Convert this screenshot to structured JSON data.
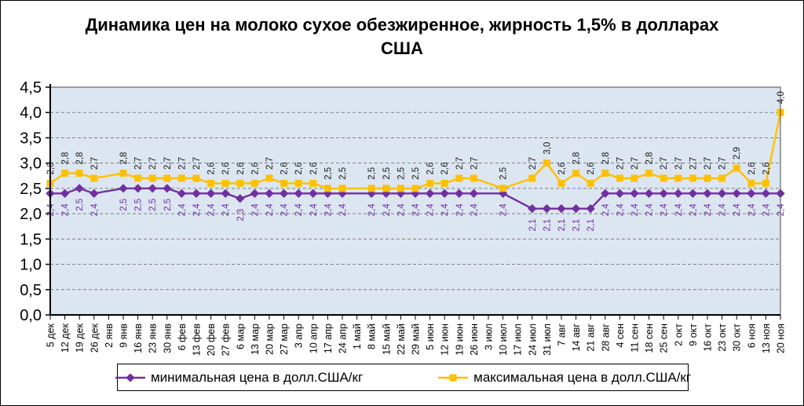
{
  "title": "Динамика цен на молоко сухое обезжиренное, жирность 1,5% в долларах США",
  "chart_data": {
    "type": "line",
    "title": "Динамика цен на молоко сухое обезжиренное, жирность 1,5% в долларах США",
    "categories": [
      "5 дек",
      "12 дек",
      "19 дек",
      "26 дек",
      "2 янв",
      "9 янв",
      "16 янв",
      "23 янв",
      "30 янв",
      "6 фев",
      "13 фев",
      "20 фев",
      "27 фев",
      "6 мар",
      "13 мар",
      "20 мар",
      "27 мар",
      "3 апр",
      "10 апр",
      "17 апр",
      "24 апр",
      "1 май",
      "8 май",
      "15 май",
      "22 май",
      "29 май",
      "5 июн",
      "12 июн",
      "19 июн",
      "26 июн",
      "3 июл",
      "10 июл",
      "17 июл",
      "24 июл",
      "31 июл",
      "7 авг",
      "14 авг",
      "21 авг",
      "28 авг",
      "4 сен",
      "11 сен",
      "18 сен",
      "25 сен",
      "2 окт",
      "9 окт",
      "16 окт",
      "23 окт",
      "30 окт",
      "6 ноя",
      "13 ноя",
      "20 ноя"
    ],
    "series": [
      {
        "name": "минимальная цена в долл.США/кг",
        "color": "#7030A0",
        "marker": "diamond",
        "label_color": "#7030A0",
        "label_position": "below",
        "values": [
          2.4,
          2.4,
          2.5,
          2.4,
          null,
          2.5,
          2.5,
          2.5,
          2.5,
          2.4,
          2.4,
          2.4,
          2.4,
          2.3,
          2.4,
          2.4,
          2.4,
          2.4,
          2.4,
          2.4,
          2.4,
          null,
          2.4,
          2.4,
          2.4,
          2.4,
          2.4,
          2.4,
          2.4,
          2.4,
          null,
          2.4,
          null,
          2.1,
          2.1,
          2.1,
          2.1,
          2.1,
          2.4,
          2.4,
          2.4,
          2.4,
          2.4,
          2.4,
          2.4,
          2.4,
          2.4,
          2.4,
          2.4,
          2.4,
          2.4
        ]
      },
      {
        "name": "максимальная цена в долл.США/кг",
        "color": "#FFC000",
        "marker": "square",
        "label_color": "#1a1a1a",
        "label_position": "above",
        "values": [
          2.6,
          2.8,
          2.8,
          2.7,
          null,
          2.8,
          2.7,
          2.7,
          2.7,
          2.7,
          2.7,
          2.6,
          2.6,
          2.6,
          2.6,
          2.7,
          2.6,
          2.6,
          2.6,
          2.5,
          2.5,
          null,
          2.5,
          2.5,
          2.5,
          2.5,
          2.6,
          2.6,
          2.7,
          2.7,
          null,
          2.5,
          null,
          2.7,
          3.0,
          2.6,
          2.8,
          2.6,
          2.8,
          2.7,
          2.7,
          2.8,
          2.7,
          2.7,
          2.7,
          2.7,
          2.7,
          2.9,
          2.6,
          2.6,
          4.0
        ]
      }
    ],
    "xlabel": "",
    "ylabel": "",
    "ylim": [
      0,
      4.5
    ],
    "ytick_step": 0.5,
    "ytick_labels": [
      "0,0",
      "0,5",
      "1,0",
      "1,5",
      "2,0",
      "2,5",
      "3,0",
      "3,5",
      "4,0",
      "4,5"
    ],
    "grid": true,
    "gridline_color": "#808080",
    "plot_bg": "#DCE6F1",
    "legend_position": "bottom",
    "decimal_separator": ","
  }
}
